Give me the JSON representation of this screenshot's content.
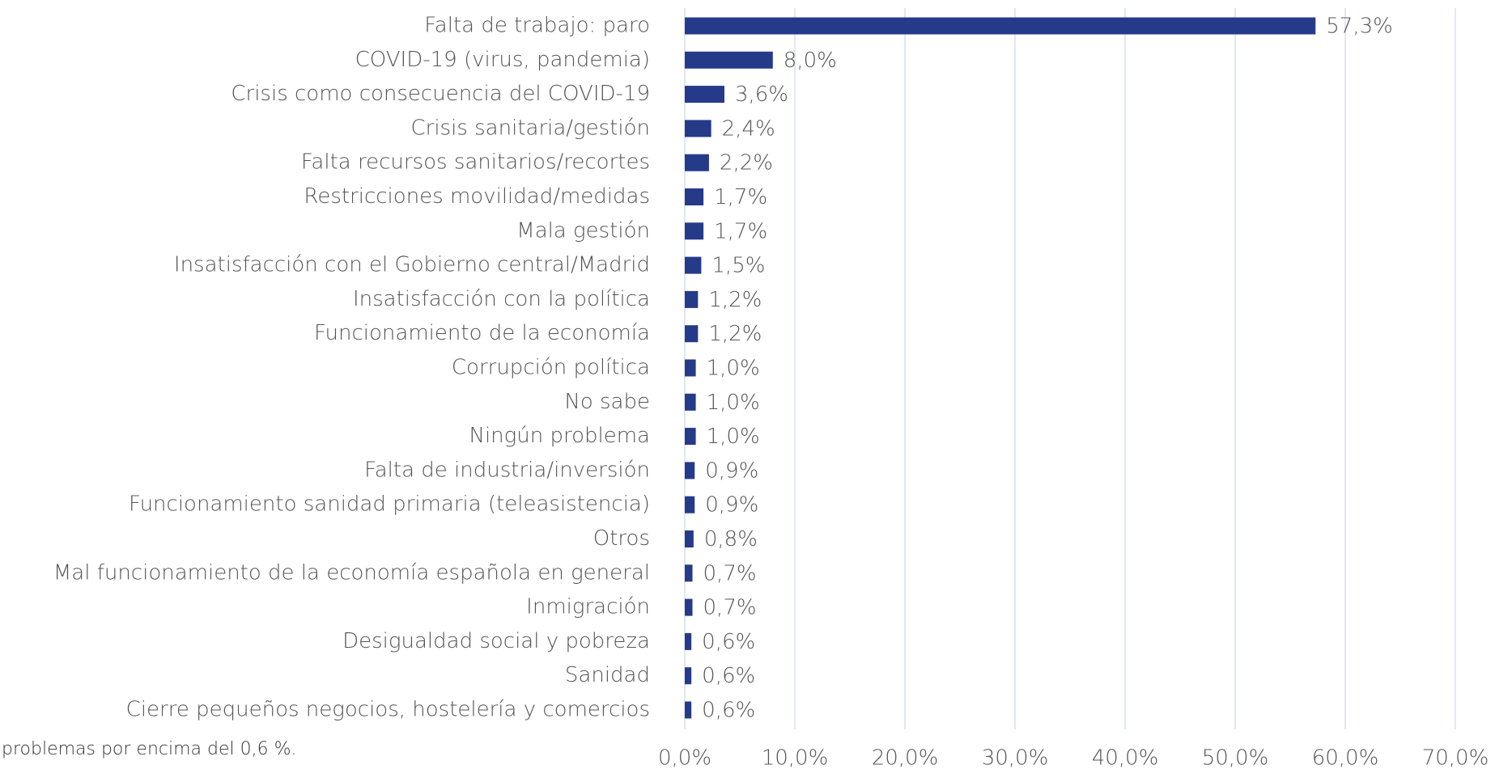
{
  "chart_data": {
    "type": "barh",
    "categories": [
      "Falta de trabajo: paro",
      "COVID-19 (virus, pandemia)",
      "Crisis como consecuencia del COVID-19",
      "Crisis sanitaria/gestión",
      "Falta recursos sanitarios/recortes",
      "Restricciones movilidad/medidas",
      "Mala gestión",
      "Insatisfacción con el Gobierno central/Madrid",
      "Insatisfacción con la política",
      "Funcionamiento de la economía",
      "Corrupción política",
      "No sabe",
      "Ningún problema",
      "Falta de industria/inversión",
      "Funcionamiento sanidad primaria (teleasistencia)",
      "Otros",
      "Mal funcionamiento de la economía española en general",
      "Inmigración",
      "Desigualdad social y pobreza",
      "Sanidad",
      "Cierre pequeños negocios, hostelería y comercios"
    ],
    "values": [
      57.3,
      8.0,
      3.6,
      2.4,
      2.2,
      1.7,
      1.7,
      1.5,
      1.2,
      1.2,
      1.0,
      1.0,
      1.0,
      0.9,
      0.9,
      0.8,
      0.7,
      0.7,
      0.6,
      0.6,
      0.6
    ],
    "value_labels": [
      "57,3%",
      "8,0%",
      "3,6%",
      "2,4%",
      "2,2%",
      "1,7%",
      "1,7%",
      "1,5%",
      "1,2%",
      "1,2%",
      "1,0%",
      "1,0%",
      "1,0%",
      "0,9%",
      "0,9%",
      "0,8%",
      "0,7%",
      "0,7%",
      "0,6%",
      "0,6%",
      "0,6%"
    ],
    "color": "#263a8a",
    "xlim": [
      0,
      70
    ],
    "xticks": [
      {
        "value": 0,
        "label": "0,0%"
      },
      {
        "value": 10,
        "label": "10,0%"
      },
      {
        "value": 20,
        "label": "20,0%"
      },
      {
        "value": 30,
        "label": "30,0%"
      },
      {
        "value": 40,
        "label": "40,0%"
      },
      {
        "value": 50,
        "label": "50,0%"
      },
      {
        "value": 60,
        "label": "60,0%"
      },
      {
        "value": 70,
        "label": "70,0%"
      }
    ],
    "grid": true,
    "note": "problemas por encima del 0,6 %."
  }
}
